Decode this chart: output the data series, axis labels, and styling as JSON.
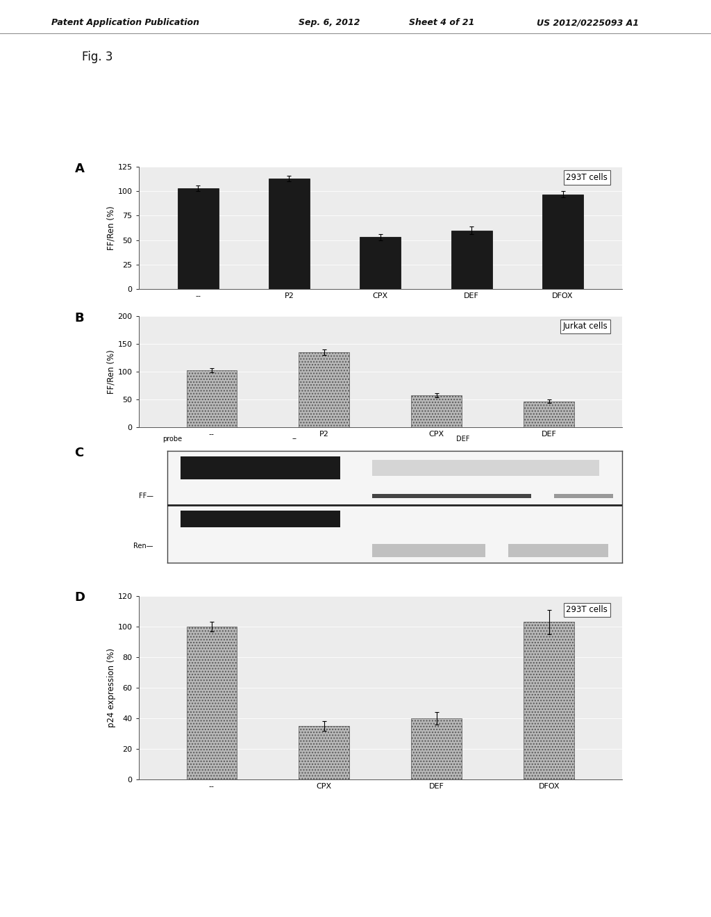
{
  "fig_label": "Fig. 3",
  "panel_A": {
    "label": "A",
    "legend": "293T cells",
    "categories": [
      "--",
      "P2",
      "CPX",
      "DEF",
      "DFOX"
    ],
    "values": [
      103,
      113,
      53,
      60,
      97
    ],
    "errors": [
      3,
      3,
      3,
      4,
      3
    ],
    "bar_color": "#1a1a1a",
    "ylabel": "FF/Ren (%)",
    "ylim": [
      0,
      125
    ],
    "yticks": [
      0,
      25,
      50,
      75,
      100,
      125
    ]
  },
  "panel_B": {
    "label": "B",
    "legend": "Jurkat cells",
    "categories": [
      "--",
      "P2",
      "CPX",
      "DEF"
    ],
    "values": [
      103,
      135,
      58,
      47
    ],
    "errors": [
      4,
      5,
      4,
      3
    ],
    "bar_color": "#b8b8b8",
    "ylabel": "FF/Ren (%)",
    "ylim": [
      0,
      200
    ],
    "yticks": [
      0,
      50,
      100,
      150,
      200
    ]
  },
  "panel_C": {
    "label": "C"
  },
  "panel_D": {
    "label": "D",
    "legend": "293T cells",
    "categories": [
      "--",
      "CPX",
      "DEF",
      "DFOX"
    ],
    "values": [
      100,
      35,
      40,
      103
    ],
    "errors": [
      3,
      3,
      4,
      8
    ],
    "bar_color": "#b8b8b8",
    "ylabel": "p24 expression (%)",
    "ylim": [
      0,
      120
    ],
    "yticks": [
      0,
      20,
      40,
      60,
      80,
      100,
      120
    ]
  },
  "bg_color": "#ffffff",
  "plot_bg_color": "#ececec",
  "panel_label_fontsize": 13,
  "tick_fontsize": 8,
  "axis_label_fontsize": 8.5,
  "legend_fontsize": 8.5,
  "header_fontsize": 9
}
